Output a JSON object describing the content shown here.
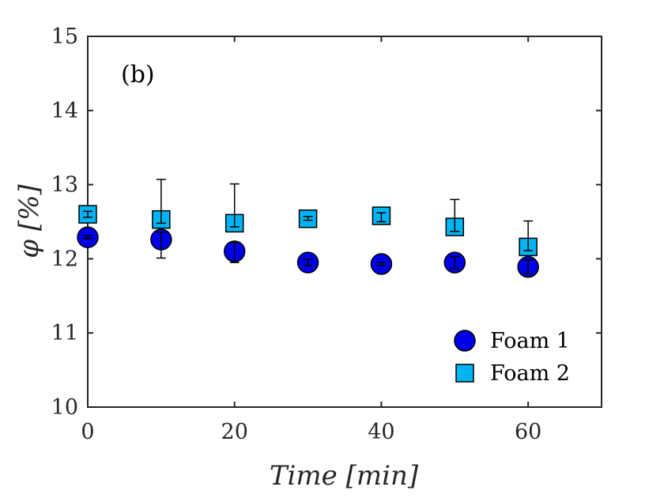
{
  "chart_data": {
    "type": "scatter",
    "title": "",
    "annotation": "(b)",
    "xlabel": "Time [min]",
    "ylabel": "φ [%]",
    "xlim": [
      0,
      70
    ],
    "ylim": [
      10,
      15
    ],
    "xticks": [
      0,
      20,
      40,
      60
    ],
    "yticks": [
      10,
      11,
      12,
      13,
      14,
      15
    ],
    "grid": false,
    "legend_position": "bottom-right",
    "series": [
      {
        "name": "Foam 1",
        "marker": "circle",
        "color": "#0000e6",
        "x": [
          0,
          10,
          20,
          30,
          40,
          50,
          60
        ],
        "y": [
          12.29,
          12.26,
          12.1,
          11.95,
          11.93,
          11.95,
          11.89
        ],
        "err_low": [
          0.02,
          0.25,
          0.15,
          0.04,
          0.02,
          0.08,
          0.09
        ],
        "err_high": [
          0.02,
          0.1,
          0.12,
          0.04,
          0.02,
          0.08,
          0.09
        ]
      },
      {
        "name": "Foam 2",
        "marker": "square",
        "color": "#00b3f2",
        "x": [
          0,
          10,
          20,
          30,
          40,
          50,
          60
        ],
        "y": [
          12.6,
          12.53,
          12.48,
          12.54,
          12.58,
          12.43,
          12.16
        ],
        "err_low": [
          0.04,
          0.05,
          0.05,
          0.02,
          0.08,
          0.06,
          0.05
        ],
        "err_high": [
          0.04,
          0.54,
          0.53,
          0.03,
          0.04,
          0.37,
          0.35
        ]
      }
    ]
  }
}
